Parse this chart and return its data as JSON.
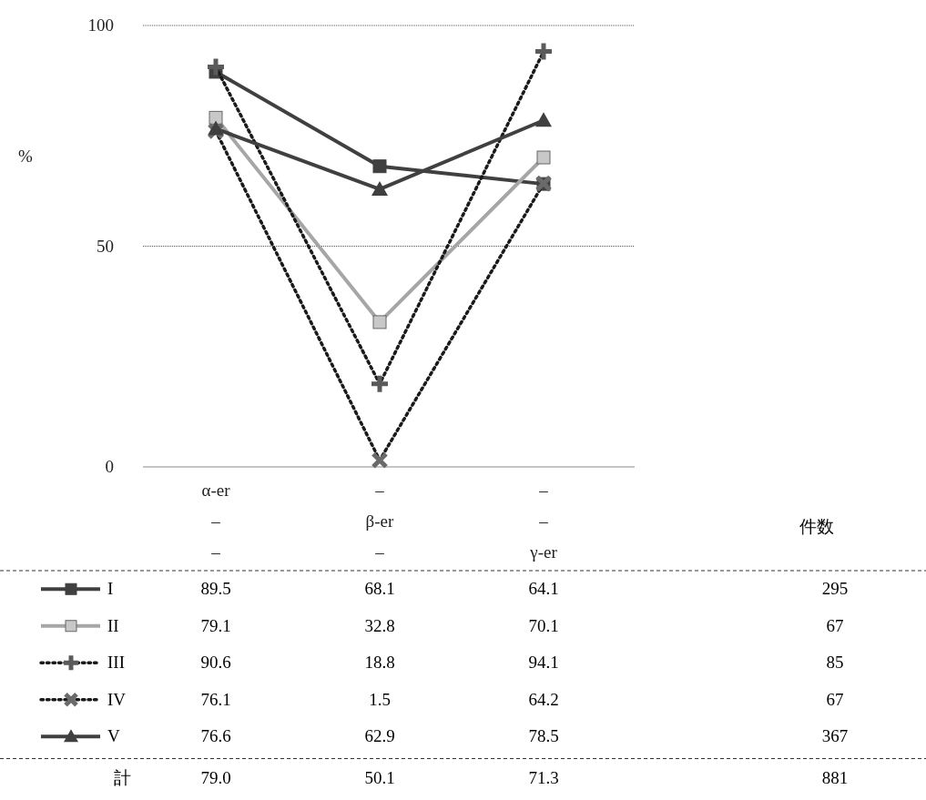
{
  "chart_data": {
    "type": "line",
    "ylabel": "%",
    "categories": [
      "α-er\n–\n–",
      "–\nβ-er\n–",
      "–\n–\nγ-er"
    ],
    "ylim": [
      0,
      100
    ],
    "yticks": [
      0,
      50,
      100
    ],
    "grid": "y",
    "legend": "bottom",
    "data_labels": true,
    "series": [
      {
        "name": "I",
        "color": "#404040",
        "marker": "square",
        "line_style": "solid",
        "values": [
          89.5,
          68.1,
          64.1
        ]
      },
      {
        "name": "II",
        "color": "#a6a6a6",
        "marker": "square",
        "line_style": "solid",
        "values": [
          79.1,
          32.8,
          70.1
        ]
      },
      {
        "name": "III",
        "color": "#1a1a1a",
        "marker": "plus",
        "line_style": "dotted",
        "values": [
          90.6,
          18.8,
          94.1
        ]
      },
      {
        "name": "IV",
        "color": "#1a1a1a",
        "marker": "cross",
        "line_style": "dotted",
        "values": [
          76.1,
          1.5,
          64.2
        ]
      },
      {
        "name": "V",
        "color": "#404040",
        "marker": "triangle",
        "line_style": "solid",
        "values": [
          76.6,
          62.9,
          78.5
        ]
      }
    ],
    "annotations": [
      "件数",
      "295",
      "67",
      "85",
      "67",
      "367",
      "計",
      "79.0",
      "50.1",
      "71.3",
      "881"
    ]
  }
}
